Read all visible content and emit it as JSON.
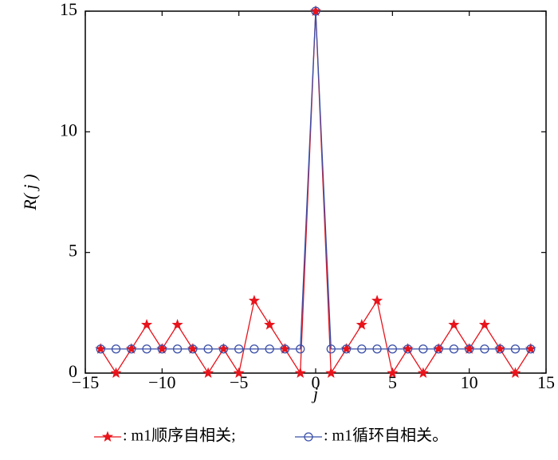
{
  "chart_data": {
    "type": "line",
    "x_label": "j",
    "y_label": "R( j )",
    "xlim": [
      -15,
      15
    ],
    "ylim": [
      0,
      15
    ],
    "xticks": [
      {
        "value": -15,
        "label": "−15"
      },
      {
        "value": -10,
        "label": "−10"
      },
      {
        "value": -5,
        "label": "−5"
      },
      0,
      5,
      10,
      15
    ],
    "yticks": [
      0,
      5,
      10,
      15
    ],
    "x": [
      -14,
      -13,
      -12,
      -11,
      -10,
      -9,
      -8,
      -7,
      -6,
      -5,
      -4,
      -3,
      -2,
      -1,
      0,
      1,
      2,
      3,
      4,
      5,
      6,
      7,
      8,
      9,
      10,
      11,
      12,
      13,
      14
    ],
    "series": [
      {
        "name": ": m1顺序自相关;",
        "color": "#e8141c",
        "marker": "star",
        "values": [
          1,
          0,
          1,
          2,
          1,
          2,
          1,
          0,
          1,
          0,
          3,
          2,
          1,
          0,
          15,
          0,
          1,
          2,
          3,
          0,
          1,
          0,
          1,
          2,
          1,
          2,
          1,
          0,
          1
        ]
      },
      {
        "name": ": m1循环自相关。",
        "color": "#3a4fa8",
        "marker": "circle",
        "values": [
          1,
          1,
          1,
          1,
          1,
          1,
          1,
          1,
          1,
          1,
          1,
          1,
          1,
          1,
          15,
          1,
          1,
          1,
          1,
          1,
          1,
          1,
          1,
          1,
          1,
          1,
          1,
          1,
          1
        ]
      }
    ]
  }
}
